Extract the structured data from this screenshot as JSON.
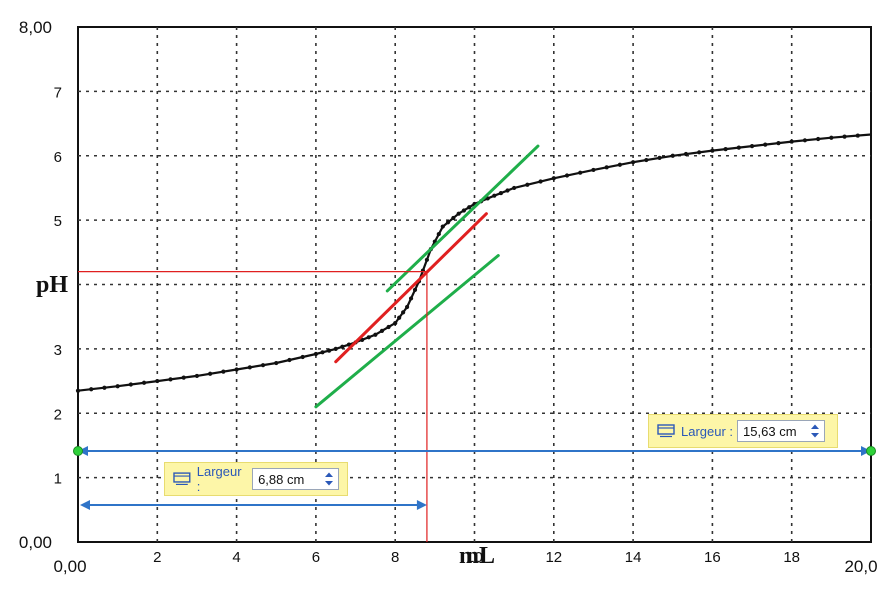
{
  "chart_data": {
    "type": "line",
    "xlabel": "mL",
    "ylabel": "pH",
    "xlim": [
      0,
      20
    ],
    "ylim": [
      0,
      8
    ],
    "x_ticks": [
      "0,00",
      "2",
      "4",
      "6",
      "8",
      "10",
      "12",
      "14",
      "16",
      "18",
      "20,0"
    ],
    "y_ticks": [
      "0,00",
      "1",
      "2",
      "3",
      "4",
      "5",
      "6",
      "7",
      "8,00"
    ],
    "grid": true,
    "series": [
      {
        "color": "#111111",
        "x": [
          0,
          1,
          2,
          3,
          4,
          5,
          6,
          6.5,
          7,
          7.5,
          8,
          8.3,
          8.6,
          8.9,
          9.2,
          9.6,
          10,
          10.5,
          11,
          12,
          13,
          14,
          15,
          16,
          17,
          18,
          19,
          20
        ],
        "y": [
          2.35,
          2.42,
          2.5,
          2.58,
          2.68,
          2.78,
          2.92,
          3.0,
          3.1,
          3.22,
          3.4,
          3.65,
          4.05,
          4.55,
          4.9,
          5.1,
          5.25,
          5.38,
          5.5,
          5.65,
          5.78,
          5.9,
          6.0,
          6.08,
          6.15,
          6.22,
          6.28,
          6.33
        ]
      }
    ],
    "annotations": {
      "tangent_lines": [
        {
          "color": "#1fae4a",
          "from": [
            6.0,
            2.1
          ],
          "to": [
            10.6,
            4.45
          ]
        },
        {
          "color": "#1fae4a",
          "from": [
            7.8,
            3.9
          ],
          "to": [
            11.6,
            6.15
          ]
        },
        {
          "color": "#e02020",
          "from": [
            6.5,
            2.8
          ],
          "to": [
            10.3,
            5.1
          ]
        }
      ],
      "equivalence_point": {
        "x": 8.8,
        "y": 4.2,
        "color": "#e02020"
      }
    }
  },
  "measure_tool": {
    "colors": {
      "arrow": "#2f74c8",
      "endpoint": "#2fd13a",
      "widget_bg": "#fdf6a8"
    },
    "full_width": {
      "label": "Largeur :",
      "value": "15,63 cm",
      "icon": "resize-icon"
    },
    "partial_width": {
      "label": "Largeur :",
      "value": "6,88 cm",
      "icon": "resize-icon"
    }
  }
}
